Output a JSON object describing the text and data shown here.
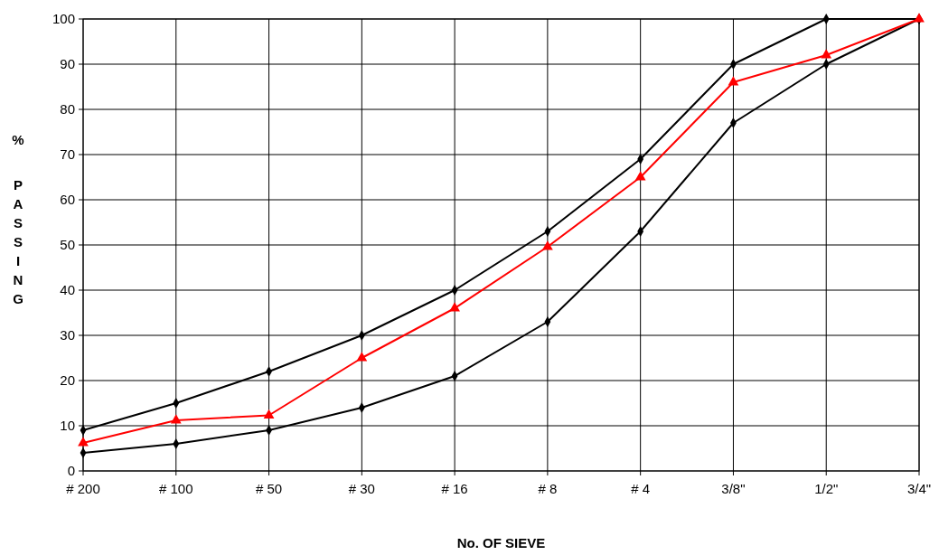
{
  "chart_data": {
    "type": "line",
    "xlabel": "No. OF SIEVE",
    "ylabel": "% PASSING",
    "categories": [
      "# 200",
      "# 100",
      "# 50",
      "# 30",
      "# 16",
      "# 8",
      "# 4",
      "3/8\"",
      "1/2\"",
      "3/4\""
    ],
    "ylim": [
      0,
      100
    ],
    "yticks": [
      0,
      10,
      20,
      30,
      40,
      50,
      60,
      70,
      80,
      90,
      100
    ],
    "grid": true,
    "series": [
      {
        "color": "#000000",
        "marker": "diamond",
        "values": [
          9,
          15,
          22,
          30,
          40,
          53,
          69,
          90,
          100,
          100
        ]
      },
      {
        "color": "#000000",
        "marker": "diamond",
        "values": [
          4,
          6,
          9,
          14,
          21,
          33,
          53,
          77,
          90,
          100
        ]
      },
      {
        "color": "#ff0000",
        "marker": "triangle",
        "values": [
          6.2,
          11.2,
          12.3,
          25,
          36,
          49.6,
          65,
          86,
          92,
          100
        ]
      }
    ]
  }
}
